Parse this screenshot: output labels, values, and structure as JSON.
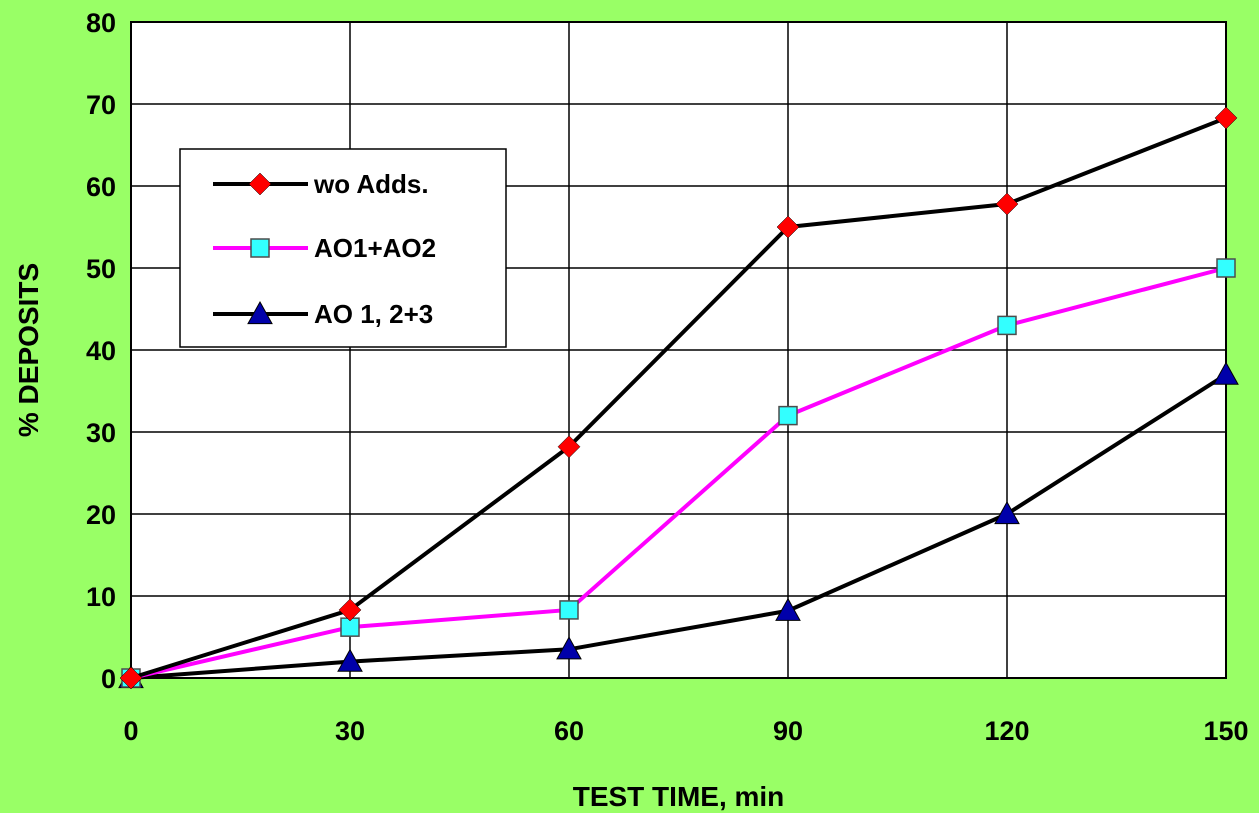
{
  "chart_data": {
    "type": "line",
    "xlabel": "TEST TIME, min",
    "ylabel": "% DEPOSITS",
    "x": [
      0,
      30,
      60,
      90,
      120,
      150
    ],
    "xlim": [
      0,
      150
    ],
    "ylim": [
      0,
      80
    ],
    "xticks": [
      "0",
      "30",
      "60",
      "90",
      "120",
      "150"
    ],
    "yticks": [
      "0",
      "10",
      "20",
      "30",
      "40",
      "50",
      "60",
      "70",
      "80"
    ],
    "grid": true,
    "legend_position": "upper-left",
    "colors": {
      "background": "#99ff66",
      "plot_area": "#ffffff"
    },
    "series": [
      {
        "name": "wo Adds.",
        "values": [
          0,
          8.3,
          28.2,
          55,
          57.8,
          68.3
        ],
        "line_color": "#000000",
        "marker": "diamond",
        "marker_color": "#ff0000"
      },
      {
        "name": "AO1+AO2",
        "values": [
          0,
          6.2,
          8.3,
          32,
          43,
          50
        ],
        "line_color": "#ff00ff",
        "marker": "square",
        "marker_color": "#33ffff"
      },
      {
        "name": "AO 1, 2+3",
        "values": [
          0,
          2,
          3.5,
          8.2,
          20,
          37
        ],
        "line_color": "#000000",
        "marker": "triangle",
        "marker_color": "#0000aa"
      }
    ]
  }
}
